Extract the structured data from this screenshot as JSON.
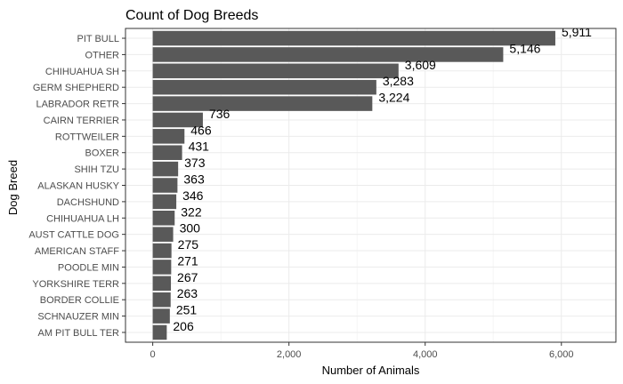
{
  "chart_data": {
    "type": "bar",
    "orientation": "horizontal",
    "title": "Count of Dog Breeds",
    "xlabel": "Number of Animals",
    "ylabel": "Dog Breed",
    "xlim": [
      -400,
      6800
    ],
    "x_ticks": [
      0,
      2000,
      4000,
      6000
    ],
    "x_tick_labels": [
      "0",
      "2,000",
      "4,000",
      "6,000"
    ],
    "grid": true,
    "categories": [
      "PIT BULL",
      "OTHER",
      "CHIHUAHUA SH",
      "GERM SHEPHERD",
      "LABRADOR RETR",
      "CAIRN TERRIER",
      "ROTTWEILER",
      "BOXER",
      "SHIH TZU",
      "ALASKAN HUSKY",
      "DACHSHUND",
      "CHIHUAHUA LH",
      "AUST CATTLE DOG",
      "AMERICAN STAFF",
      "POODLE MIN",
      "YORKSHIRE TERR",
      "BORDER COLLIE",
      "SCHNAUZER MIN",
      "AM PIT BULL TER"
    ],
    "values": [
      5911,
      5146,
      3609,
      3283,
      3224,
      736,
      466,
      431,
      373,
      363,
      346,
      322,
      300,
      275,
      271,
      267,
      263,
      251,
      206
    ],
    "value_labels": [
      "5,911",
      "5,146",
      "3,609",
      "3,283",
      "3,224",
      "736",
      "466",
      "431",
      "373",
      "363",
      "346",
      "322",
      "300",
      "275",
      "271",
      "267",
      "263",
      "251",
      "206"
    ],
    "colors": {
      "bar": "#595959",
      "grid_major": "#ebebeb",
      "grid_minor": "#f5f5f5",
      "panel_border": "#333333",
      "background": "#ffffff"
    }
  }
}
